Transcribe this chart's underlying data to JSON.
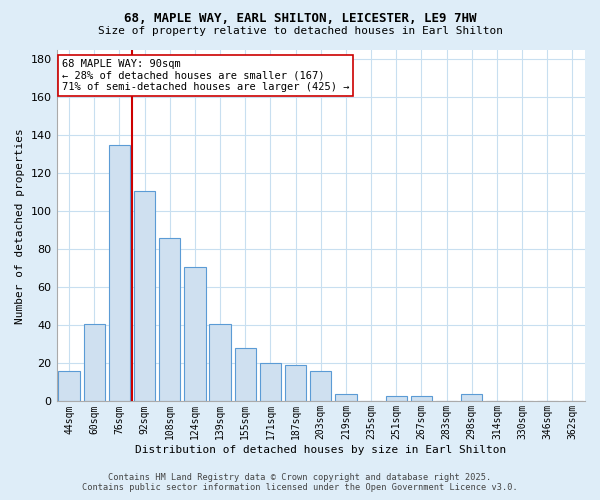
{
  "title1": "68, MAPLE WAY, EARL SHILTON, LEICESTER, LE9 7HW",
  "title2": "Size of property relative to detached houses in Earl Shilton",
  "xlabel": "Distribution of detached houses by size in Earl Shilton",
  "ylabel": "Number of detached properties",
  "bar_labels": [
    "44sqm",
    "60sqm",
    "76sqm",
    "92sqm",
    "108sqm",
    "124sqm",
    "139sqm",
    "155sqm",
    "171sqm",
    "187sqm",
    "203sqm",
    "219sqm",
    "235sqm",
    "251sqm",
    "267sqm",
    "283sqm",
    "298sqm",
    "314sqm",
    "330sqm",
    "346sqm",
    "362sqm"
  ],
  "bar_values": [
    16,
    41,
    135,
    111,
    86,
    71,
    41,
    28,
    20,
    19,
    16,
    4,
    0,
    3,
    3,
    0,
    4,
    0,
    0,
    0,
    0
  ],
  "bar_color": "#cfe0f0",
  "bar_edge_color": "#5b9bd5",
  "grid_color": "#c8dff0",
  "background_color": "#deedf8",
  "plot_bg_color": "#ffffff",
  "annotation_text": "68 MAPLE WAY: 90sqm\n← 28% of detached houses are smaller (167)\n71% of semi-detached houses are larger (425) →",
  "vline_x": 2.5,
  "vline_color": "#cc0000",
  "ylim": [
    0,
    185
  ],
  "yticks": [
    0,
    20,
    40,
    60,
    80,
    100,
    120,
    140,
    160,
    180
  ],
  "footer_line1": "Contains HM Land Registry data © Crown copyright and database right 2025.",
  "footer_line2": "Contains public sector information licensed under the Open Government Licence v3.0."
}
